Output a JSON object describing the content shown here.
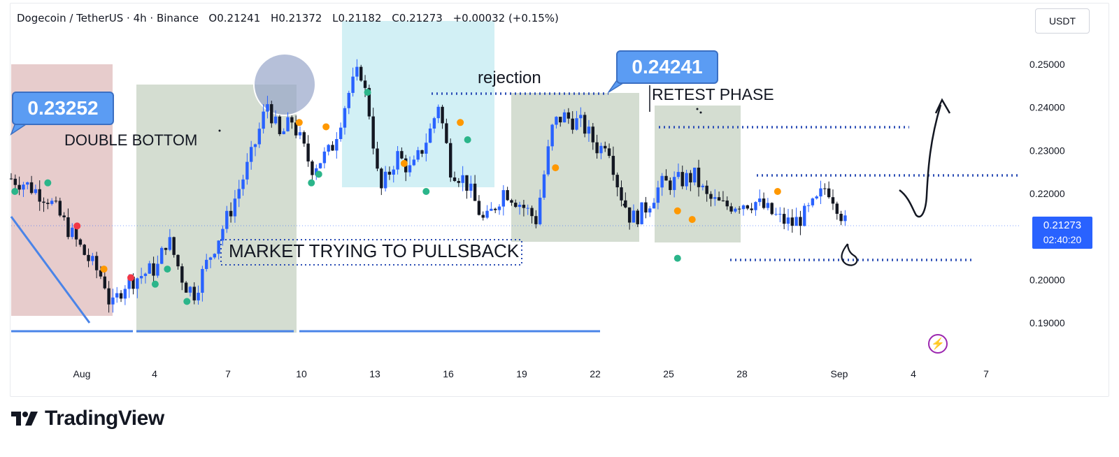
{
  "header": {
    "symbol": "Dogecoin / TetherUS · 4h · Binance",
    "o_label": "O",
    "o_value": "0.21241",
    "h_label": "H",
    "h_value": "0.21372",
    "l_label": "L",
    "l_value": "0.21182",
    "c_label": "C",
    "c_value": "0.21273",
    "change": "+0.00032 (+0.15%)"
  },
  "currency_button": "USDT",
  "price_tag": {
    "price": "0.21273",
    "countdown": "02:40:20"
  },
  "annotations": {
    "callout_left": "0.23252",
    "callout_right": "0.24241",
    "double_bottom": "DOUBLE BOTTOM",
    "rejection": "rejection",
    "retest_phase": "RETEST PHASE",
    "pullback": "MARKET TRYING TO PULLSBACK"
  },
  "footer": {
    "brand": "TradingView"
  },
  "colors": {
    "up_candle": "#2962ff",
    "down_candle": "#131722",
    "zone_red": "#e7cccc",
    "zone_green": "#d4ddd1",
    "zone_cyan": "#d2f0f5",
    "dotted": "#2b4db5",
    "line_blue": "#4a84e8",
    "dot_orange": "#ff9800",
    "dot_green": "#2bb58a",
    "dot_red": "#f23645"
  },
  "chart_data": {
    "type": "candlestick",
    "y_axis_ticks": [
      "0.25000",
      "0.24000",
      "0.23000",
      "0.22000",
      "0.20000",
      "0.19000"
    ],
    "x_axis_ticks": [
      "Aug",
      "4",
      "7",
      "10",
      "13",
      "16",
      "19",
      "22",
      "25",
      "28",
      "Sep",
      "4",
      "7"
    ],
    "ylim": [
      0.184,
      0.258
    ],
    "grid": false,
    "close_path": [
      [
        0,
        0.2235
      ],
      [
        0.5,
        0.2225
      ],
      [
        1.5,
        0.219
      ],
      [
        2.2,
        0.213
      ],
      [
        3,
        0.206
      ],
      [
        3.8,
        0.2
      ],
      [
        4.1,
        0.193
      ],
      [
        4.6,
        0.199
      ],
      [
        5.3,
        0.201
      ],
      [
        6,
        0.203
      ],
      [
        6.4,
        0.21
      ],
      [
        7.1,
        0.199
      ],
      [
        7.5,
        0.197
      ],
      [
        8.1,
        0.205
      ],
      [
        8.9,
        0.215
      ],
      [
        9.8,
        0.228
      ],
      [
        10.5,
        0.241
      ],
      [
        11,
        0.233
      ],
      [
        11.5,
        0.237
      ],
      [
        12.3,
        0.226
      ],
      [
        13.1,
        0.23
      ],
      [
        13.8,
        0.243
      ],
      [
        14.3,
        0.249
      ],
      [
        14.7,
        0.238
      ],
      [
        15.1,
        0.22
      ],
      [
        15.8,
        0.229
      ],
      [
        16.4,
        0.225
      ],
      [
        17.2,
        0.235
      ],
      [
        17.5,
        0.241
      ],
      [
        18,
        0.226
      ],
      [
        18.6,
        0.223
      ],
      [
        19.4,
        0.213
      ],
      [
        20.2,
        0.221
      ],
      [
        20.8,
        0.218
      ],
      [
        21.5,
        0.214
      ],
      [
        22.2,
        0.236
      ],
      [
        22.6,
        0.238
      ],
      [
        23.4,
        0.236
      ],
      [
        24.1,
        0.23
      ],
      [
        24.4,
        0.233
      ],
      [
        24.9,
        0.221
      ],
      [
        25.4,
        0.214
      ],
      [
        25.9,
        0.216
      ],
      [
        26.6,
        0.222
      ],
      [
        27.4,
        0.223
      ],
      [
        28,
        0.224
      ],
      [
        28.5,
        0.219
      ],
      [
        29.2,
        0.217
      ],
      [
        29.9,
        0.218
      ],
      [
        30.5,
        0.218
      ],
      [
        31,
        0.216
      ],
      [
        31.5,
        0.214
      ],
      [
        32,
        0.213
      ],
      [
        32.5,
        0.215
      ],
      [
        33,
        0.218
      ],
      [
        33.4,
        0.222
      ],
      [
        33.8,
        0.218
      ],
      [
        34.2,
        0.2127
      ]
    ]
  }
}
